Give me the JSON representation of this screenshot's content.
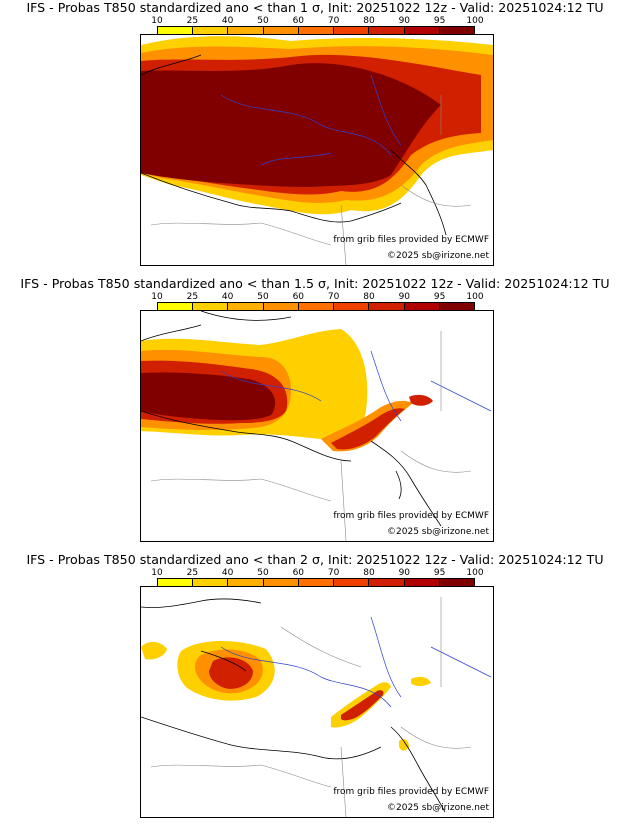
{
  "colorbar": {
    "ticks": [
      "10",
      "25",
      "40",
      "50",
      "60",
      "70",
      "80",
      "90",
      "95",
      "100"
    ],
    "colors": [
      "#ffff00",
      "#ffd000",
      "#ffb000",
      "#ff9000",
      "#ff7000",
      "#f04000",
      "#d02000",
      "#b00000",
      "#800000"
    ]
  },
  "panels": [
    {
      "title": "IFS - Probas T850  standardized ano < than 1 σ, Init: 20251022 12z - Valid: 20251024:12 TU",
      "source": "from grib files provided by ECMWF",
      "copyright": "©2025 sb@irizone.net"
    },
    {
      "title": "IFS - Probas T850  standardized ano < than 1.5 σ, Init: 20251022 12z - Valid: 20251024:12 TU",
      "source": "from grib files provided by ECMWF",
      "copyright": "©2025 sb@irizone.net"
    },
    {
      "title": "IFS - Probas T850  standardized ano < than 2 σ, Init: 20251022 12z - Valid: 20251024:12 TU",
      "source": "from grib files provided by ECMWF",
      "copyright": "©2025 sb@irizone.net"
    }
  ]
}
